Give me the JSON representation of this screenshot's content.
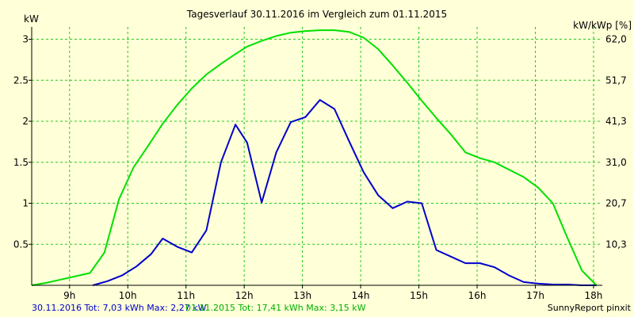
{
  "chart_data": {
    "type": "line",
    "title": "Tagesverlauf 30.11.2016 im Vergleich zum 01.11.2015",
    "ylabel": "kW",
    "ylabel_right": "kW/kWp [%]",
    "xlim": [
      8.35,
      18.15
    ],
    "ylim": [
      0,
      3.15
    ],
    "x_ticks": [
      9,
      10,
      11,
      12,
      13,
      14,
      15,
      16,
      17,
      18
    ],
    "x_tick_labels": [
      "9h",
      "10h",
      "11h",
      "12h",
      "13h",
      "14h",
      "15h",
      "16h",
      "17h",
      "18h"
    ],
    "y_ticks": [
      0.5,
      1,
      1.5,
      2,
      2.5,
      3
    ],
    "y_tick_labels": [
      "0.5",
      "1",
      "1.5",
      "2",
      "2.5",
      "3"
    ],
    "y2_tick_labels": [
      "10,3",
      "20,7",
      "31,0",
      "41,3",
      "51,7",
      "62,0"
    ],
    "grid": true,
    "series": [
      {
        "name": "30.11.2016",
        "color": "#0000cc",
        "x": [
          9.4,
          9.65,
          9.9,
          10.15,
          10.4,
          10.6,
          10.85,
          11.1,
          11.35,
          11.6,
          11.85,
          12.05,
          12.3,
          12.55,
          12.8,
          13.05,
          13.3,
          13.55,
          13.8,
          14.05,
          14.3,
          14.55,
          14.8,
          15.05,
          15.3,
          15.55,
          15.8,
          16.05,
          16.3,
          16.55,
          16.8,
          17.05,
          17.3,
          17.55,
          17.8,
          18.05
        ],
        "y": [
          0,
          0.05,
          0.12,
          0.23,
          0.38,
          0.57,
          0.47,
          0.4,
          0.67,
          1.5,
          1.96,
          1.74,
          1.01,
          1.62,
          1.99,
          2.05,
          2.26,
          2.15,
          1.76,
          1.38,
          1.1,
          0.94,
          1.02,
          1.0,
          0.43,
          0.35,
          0.27,
          0.27,
          0.22,
          0.12,
          0.04,
          0.02,
          0.01,
          0.01,
          0.0,
          0.0
        ],
        "tot": "30.11.2016 Tot: 7,03 kWh Max: 2,27 kW"
      },
      {
        "name": "01.11.2015",
        "color": "#00e000",
        "x": [
          8.35,
          8.6,
          8.85,
          9.1,
          9.35,
          9.6,
          9.85,
          10.1,
          10.35,
          10.6,
          10.85,
          11.1,
          11.35,
          11.6,
          11.85,
          12.05,
          12.3,
          12.55,
          12.8,
          13.05,
          13.3,
          13.55,
          13.8,
          14.05,
          14.3,
          14.55,
          14.8,
          15.05,
          15.3,
          15.55,
          15.8,
          16.05,
          16.3,
          16.55,
          16.8,
          17.05,
          17.3,
          17.55,
          17.8,
          18.05
        ],
        "y": [
          0.0,
          0.03,
          0.07,
          0.11,
          0.15,
          0.4,
          1.05,
          1.44,
          1.7,
          1.97,
          2.2,
          2.4,
          2.57,
          2.7,
          2.82,
          2.91,
          2.98,
          3.04,
          3.08,
          3.1,
          3.11,
          3.11,
          3.09,
          3.02,
          2.88,
          2.68,
          2.47,
          2.25,
          2.04,
          1.84,
          1.62,
          1.55,
          1.5,
          1.41,
          1.32,
          1.19,
          1.0,
          0.58,
          0.18,
          0.0
        ],
        "tot": "01.11.2015 Tot: 17,41 kWh Max: 3,15 kW"
      }
    ]
  },
  "footer": {
    "credit": "SunnyReport pinxit"
  }
}
